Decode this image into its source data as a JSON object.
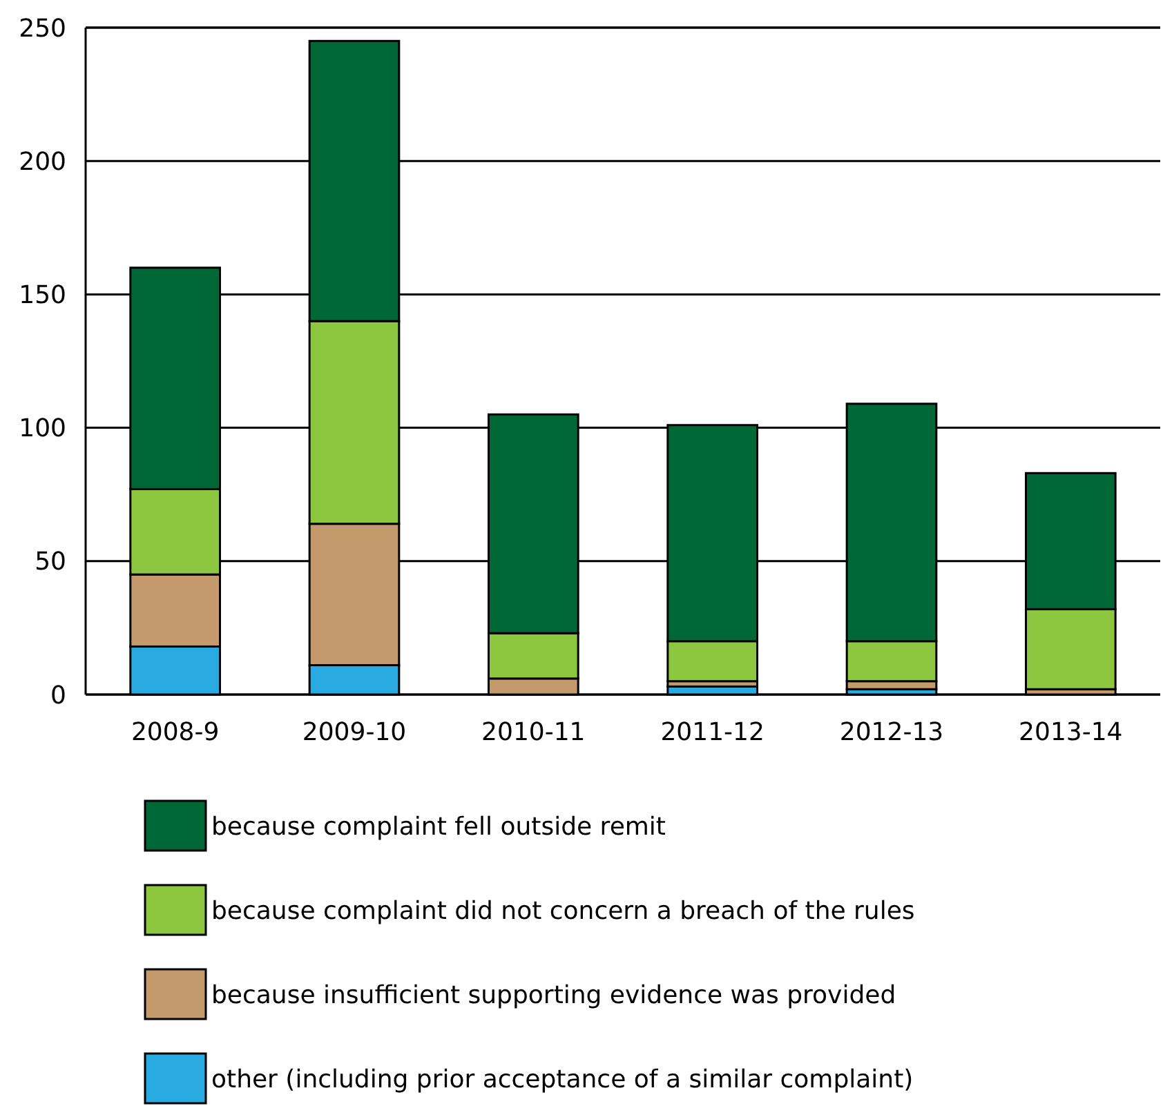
{
  "chart_data": {
    "type": "bar",
    "stacked": true,
    "categories": [
      "2008-9",
      "2009-10",
      "2010-11",
      "2011-12",
      "2012-13",
      "2013-14"
    ],
    "series": [
      {
        "name": "other (including prior acceptance of a similar complaint)",
        "color": "#29abe2",
        "values": [
          18,
          11,
          0,
          3,
          2,
          0
        ]
      },
      {
        "name": "because insufficient supporting evidence was provided",
        "color": "#c49a6c",
        "values": [
          27,
          53,
          6,
          2,
          3,
          2
        ]
      },
      {
        "name": "because complaint did not concern a breach of the rules",
        "color": "#8dc63f",
        "values": [
          32,
          76,
          17,
          15,
          15,
          30
        ]
      },
      {
        "name": "because complaint fell outside remit",
        "color": "#006837",
        "values": [
          83,
          105,
          82,
          81,
          89,
          51
        ]
      }
    ],
    "ylim": [
      0,
      250
    ],
    "yticks": [
      0,
      50,
      100,
      150,
      200,
      250
    ],
    "grid": "y",
    "legend": "bottom"
  }
}
